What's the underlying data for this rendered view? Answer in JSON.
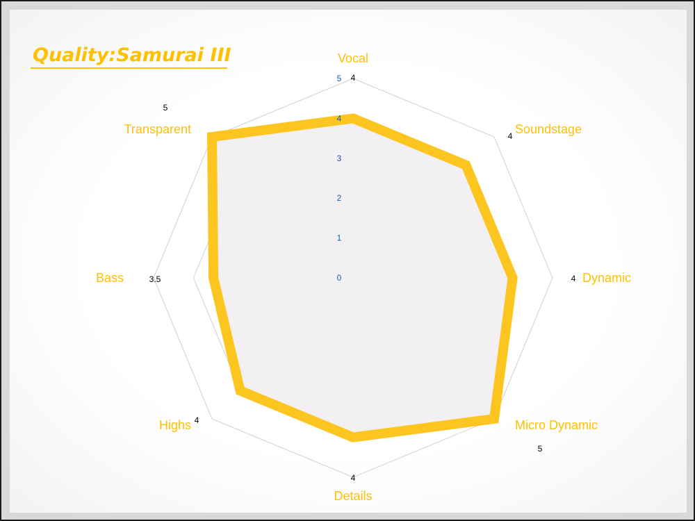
{
  "chart_data": {
    "type": "radar",
    "title": "Quality:Samurai III",
    "categories": [
      "Vocal",
      "Soundstage",
      "Dynamic",
      "Micro Dynamic",
      "Details",
      "Highs",
      "Bass",
      "Transparent"
    ],
    "values": [
      4,
      4,
      4,
      5,
      4,
      4,
      3.5,
      5
    ],
    "value_labels": [
      "4",
      "4",
      "4",
      "5",
      "4",
      "4",
      "3.5",
      "5"
    ],
    "rlim": [
      0,
      5
    ],
    "r_ticks": [
      "0",
      "1",
      "2",
      "3",
      "4",
      "5"
    ],
    "grid": true,
    "colors": {
      "series": "#fcc520",
      "fill": "#f1eef2",
      "category_label": "#ffc000",
      "title": "#ffc000",
      "tick_label": "#1f5a9c",
      "grid": "#d0d0d0",
      "value_label": "#000000"
    }
  }
}
